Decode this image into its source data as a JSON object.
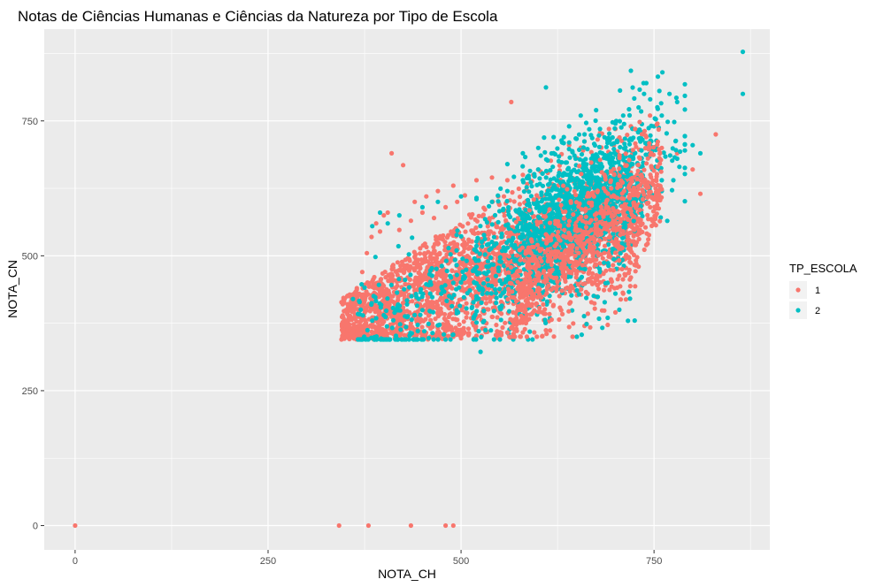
{
  "chart_data": {
    "type": "scatter",
    "title": "Notas de Ciências Humanas e Ciências da Natureza por Tipo de Escola",
    "xlabel": "NOTA_CH",
    "ylabel": "NOTA_CN",
    "xlim": [
      -40,
      900
    ],
    "ylim": [
      -45,
      920
    ],
    "x_ticks": [
      0,
      250,
      500,
      750
    ],
    "y_ticks": [
      0,
      250,
      500,
      750
    ],
    "grid": true,
    "background": "#EBEBEB",
    "legend": {
      "title": "TP_ESCOLA",
      "position": "right",
      "entries": [
        {
          "label": "1",
          "color": "#F8766D"
        },
        {
          "label": "2",
          "color": "#00BFC4"
        }
      ]
    },
    "series": [
      {
        "name": "1",
        "color": "#F8766D",
        "points": [
          [
            0,
            0
          ],
          [
            342,
            0
          ],
          [
            380,
            0
          ],
          [
            435,
            0
          ],
          [
            480,
            0
          ],
          [
            490,
            0
          ],
          [
            345,
            345
          ],
          [
            352,
            378
          ],
          [
            360,
            410
          ],
          [
            365,
            440
          ],
          [
            372,
            470
          ],
          [
            378,
            505
          ],
          [
            384,
            535
          ],
          [
            390,
            560
          ],
          [
            400,
            575
          ],
          [
            410,
            690
          ],
          [
            425,
            668
          ],
          [
            440,
            600
          ],
          [
            455,
            610
          ],
          [
            470,
            620
          ],
          [
            490,
            630
          ],
          [
            505,
            612
          ],
          [
            520,
            640
          ],
          [
            540,
            645
          ],
          [
            560,
            640
          ],
          [
            565,
            785
          ],
          [
            580,
            650
          ],
          [
            600,
            660
          ],
          [
            620,
            690
          ],
          [
            640,
            705
          ],
          [
            660,
            712
          ],
          [
            680,
            728
          ],
          [
            700,
            735
          ],
          [
            720,
            740
          ],
          [
            740,
            720
          ],
          [
            760,
            700
          ],
          [
            780,
            690
          ],
          [
            800,
            660
          ],
          [
            810,
            615
          ],
          [
            830,
            725
          ],
          [
            700,
            395
          ],
          [
            710,
            430
          ],
          [
            720,
            460
          ],
          [
            730,
            480
          ],
          [
            740,
            520
          ],
          [
            750,
            560
          ],
          [
            745,
            590
          ],
          [
            735,
            610
          ],
          [
            690,
            372
          ],
          [
            660,
            370
          ],
          [
            640,
            368
          ],
          [
            610,
            362
          ],
          [
            580,
            358
          ],
          [
            550,
            355
          ],
          [
            520,
            352
          ],
          [
            490,
            350
          ],
          [
            460,
            350
          ],
          [
            430,
            352
          ],
          [
            400,
            355
          ],
          [
            385,
            368
          ],
          [
            370,
            385
          ],
          [
            360,
            360
          ],
          [
            395,
            545
          ],
          [
            405,
            580
          ],
          [
            420,
            548
          ],
          [
            435,
            565
          ],
          [
            450,
            580
          ],
          [
            465,
            570
          ],
          [
            480,
            590
          ],
          [
            495,
            600
          ]
        ]
      },
      {
        "name": "2",
        "color": "#00BFC4",
        "points": [
          [
            865,
            878
          ],
          [
            865,
            800
          ],
          [
            720,
            843
          ],
          [
            755,
            832
          ],
          [
            740,
            820
          ],
          [
            610,
            812
          ],
          [
            790,
            818
          ],
          [
            770,
            800
          ],
          [
            780,
            785
          ],
          [
            760,
            760
          ],
          [
            750,
            740
          ],
          [
            735,
            715
          ],
          [
            725,
            690
          ],
          [
            715,
            665
          ],
          [
            700,
            645
          ],
          [
            685,
            625
          ],
          [
            670,
            605
          ],
          [
            655,
            590
          ],
          [
            640,
            575
          ],
          [
            625,
            560
          ],
          [
            610,
            545
          ],
          [
            595,
            530
          ],
          [
            580,
            515
          ],
          [
            565,
            500
          ],
          [
            550,
            490
          ],
          [
            535,
            480
          ],
          [
            520,
            470
          ],
          [
            505,
            460
          ],
          [
            490,
            450
          ],
          [
            475,
            440
          ],
          [
            460,
            430
          ],
          [
            445,
            420
          ],
          [
            430,
            410
          ],
          [
            415,
            400
          ],
          [
            400,
            390
          ],
          [
            385,
            380
          ],
          [
            370,
            400
          ],
          [
            360,
            420
          ],
          [
            372,
            345
          ],
          [
            395,
            580
          ],
          [
            385,
            555
          ],
          [
            405,
            560
          ],
          [
            420,
            575
          ],
          [
            450,
            590
          ],
          [
            470,
            600
          ],
          [
            500,
            610
          ],
          [
            520,
            605
          ],
          [
            540,
            600
          ],
          [
            560,
            620
          ],
          [
            580,
            640
          ],
          [
            600,
            660
          ],
          [
            620,
            690
          ],
          [
            640,
            710
          ],
          [
            660,
            725
          ],
          [
            680,
            735
          ],
          [
            700,
            745
          ],
          [
            710,
            760
          ],
          [
            730,
            775
          ],
          [
            745,
            790
          ],
          [
            640,
            550
          ],
          [
            660,
            500
          ],
          [
            680,
            470
          ],
          [
            690,
            450
          ],
          [
            700,
            430
          ],
          [
            650,
            350
          ],
          [
            690,
            385
          ],
          [
            705,
            400
          ],
          [
            725,
            380
          ],
          [
            740,
            600
          ],
          [
            760,
            620
          ],
          [
            775,
            640
          ],
          [
            780,
            680
          ],
          [
            800,
            705
          ],
          [
            810,
            690
          ],
          [
            720,
            650
          ],
          [
            735,
            665
          ],
          [
            760,
            640
          ],
          [
            640,
            740
          ],
          [
            620,
            720
          ],
          [
            655,
            760
          ],
          [
            675,
            770
          ],
          [
            600,
            700
          ],
          [
            580,
            690
          ],
          [
            560,
            670
          ]
        ]
      }
    ]
  }
}
